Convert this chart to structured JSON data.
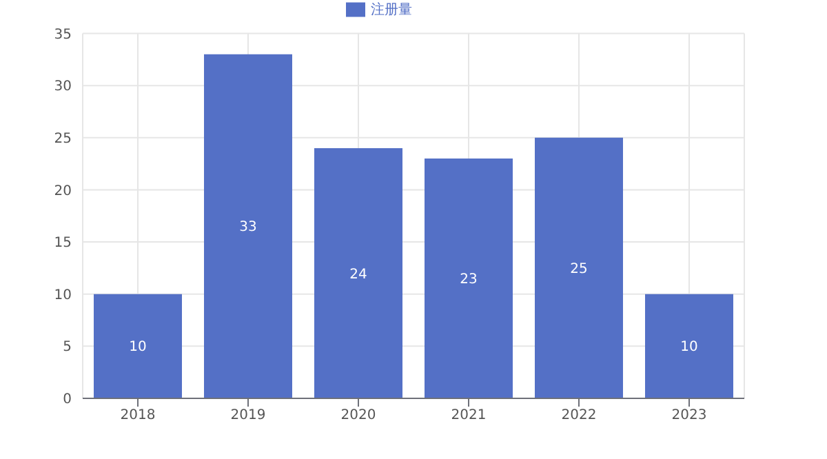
{
  "chart_data": {
    "type": "bar",
    "categories": [
      "2018",
      "2019",
      "2020",
      "2021",
      "2022",
      "2023"
    ],
    "series": [
      {
        "name": "注册量",
        "color": "#5470c6",
        "values": [
          10,
          33,
          24,
          23,
          25,
          10
        ]
      }
    ],
    "ylim": [
      0,
      35
    ],
    "yticks": [
      0,
      5,
      10,
      15,
      20,
      25,
      30,
      35
    ],
    "grid": true,
    "legend": "top",
    "data_labels": true
  }
}
